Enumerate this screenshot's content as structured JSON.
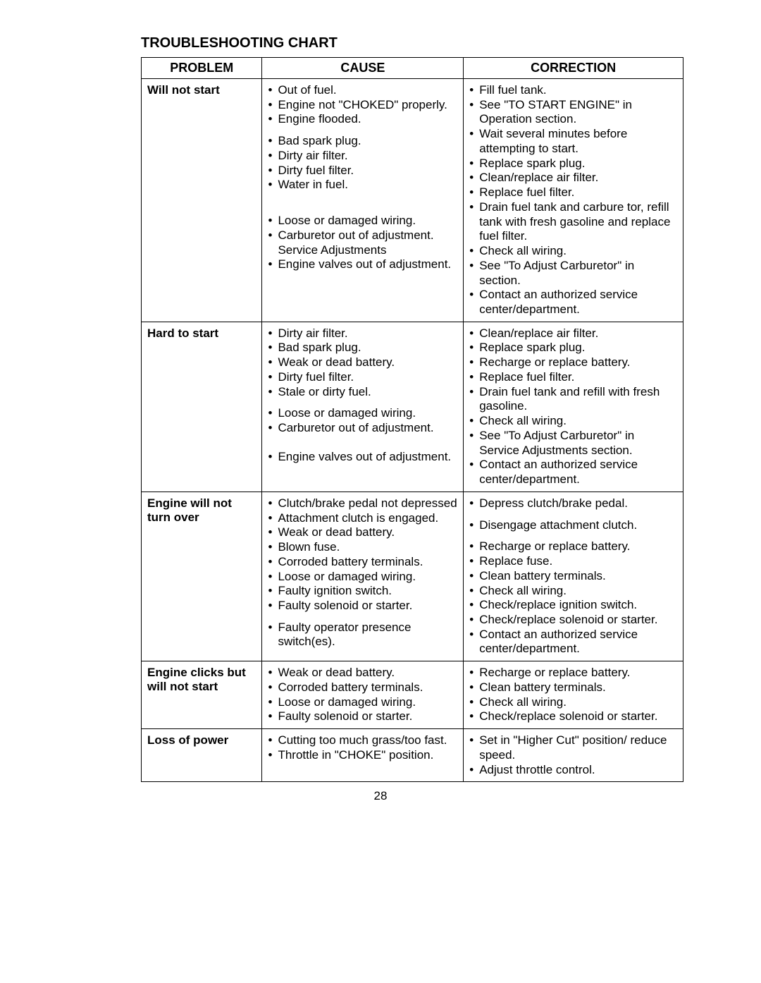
{
  "title": "TROUBLESHOOTING CHART",
  "headers": {
    "problem": "PROBLEM",
    "cause": "CAUSE",
    "correction": "CORRECTION"
  },
  "page_number": "28",
  "rows": [
    {
      "problem": "Will not start",
      "causes": [
        "Out of fuel.",
        "Engine not \"CHOKED\" properly.",
        "Engine flooded.",
        "SPACER",
        "Bad spark plug.",
        "Dirty air filter.",
        "Dirty fuel filter.",
        "Water in fuel.",
        "SPACER",
        "SPACER",
        "SPACER",
        "Loose or damaged wiring.",
        "Carburetor out of adjustment. Service Adjustments",
        "Engine valves out of adjustment."
      ],
      "corrections": [
        "Fill fuel tank.",
        "See \"TO START ENGINE\" in Operation section.",
        "Wait several minutes before attempting to start.",
        "Replace spark plug.",
        "Clean/replace air filter.",
        "Replace fuel filter.",
        "Drain fuel tank and carbure tor, refill tank with fresh gasoline and replace fuel filter.",
        "Check all wiring.",
        "See \"To Adjust Carburetor\" in section.",
        "Contact an authorized service center/department."
      ]
    },
    {
      "problem": "Hard to start",
      "causes": [
        "Dirty air filter.",
        "Bad spark plug.",
        "Weak or dead battery.",
        "Dirty fuel filter.",
        "Stale or dirty fuel.",
        "SPACER",
        "Loose or damaged wiring.",
        "Carburetor out of adjustment.",
        "SPACER",
        "SPACER",
        "Engine valves out of adjustment."
      ],
      "corrections": [
        "Clean/replace air filter.",
        "Replace spark plug.",
        "Recharge or replace battery.",
        "Replace fuel filter.",
        "Drain fuel tank and refill with fresh gasoline.",
        "Check all wiring.",
        "See \"To Adjust Carburetor\" in Service Adjustments section.",
        "Contact an authorized service center/department."
      ]
    },
    {
      "problem": "Engine will not turn over",
      "causes": [
        "Clutch/brake pedal not depressed",
        "Attachment clutch is engaged.",
        "Weak or dead battery.",
        "Blown fuse.",
        "Corroded battery terminals.",
        "Loose or damaged wiring.",
        "Faulty ignition switch.",
        "Faulty solenoid or starter.",
        "SPACER",
        "Faulty operator presence switch(es)."
      ],
      "corrections": [
        "Depress clutch/brake pedal.",
        "SPACER",
        "Disengage attachment clutch.",
        "SPACER",
        "Recharge or replace battery.",
        "Replace fuse.",
        "Clean battery terminals.",
        "Check all wiring.",
        "Check/replace ignition switch.",
        "Check/replace solenoid or starter.",
        "Contact an authorized service center/department."
      ]
    },
    {
      "problem": "Engine clicks but will not start",
      "causes": [
        "Weak or dead battery.",
        "Corroded battery terminals.",
        "Loose or damaged wiring.",
        "Faulty solenoid or starter."
      ],
      "corrections": [
        "Recharge or replace battery.",
        "Clean battery terminals.",
        "Check all wiring.",
        "Check/replace solenoid or starter."
      ]
    },
    {
      "problem": "Loss of power",
      "causes": [
        "Cutting too much grass/too fast.",
        "Throttle in \"CHOKE\" position."
      ],
      "corrections": [
        "Set in \"Higher Cut\" position/ reduce speed.",
        "Adjust throttle control."
      ]
    }
  ]
}
